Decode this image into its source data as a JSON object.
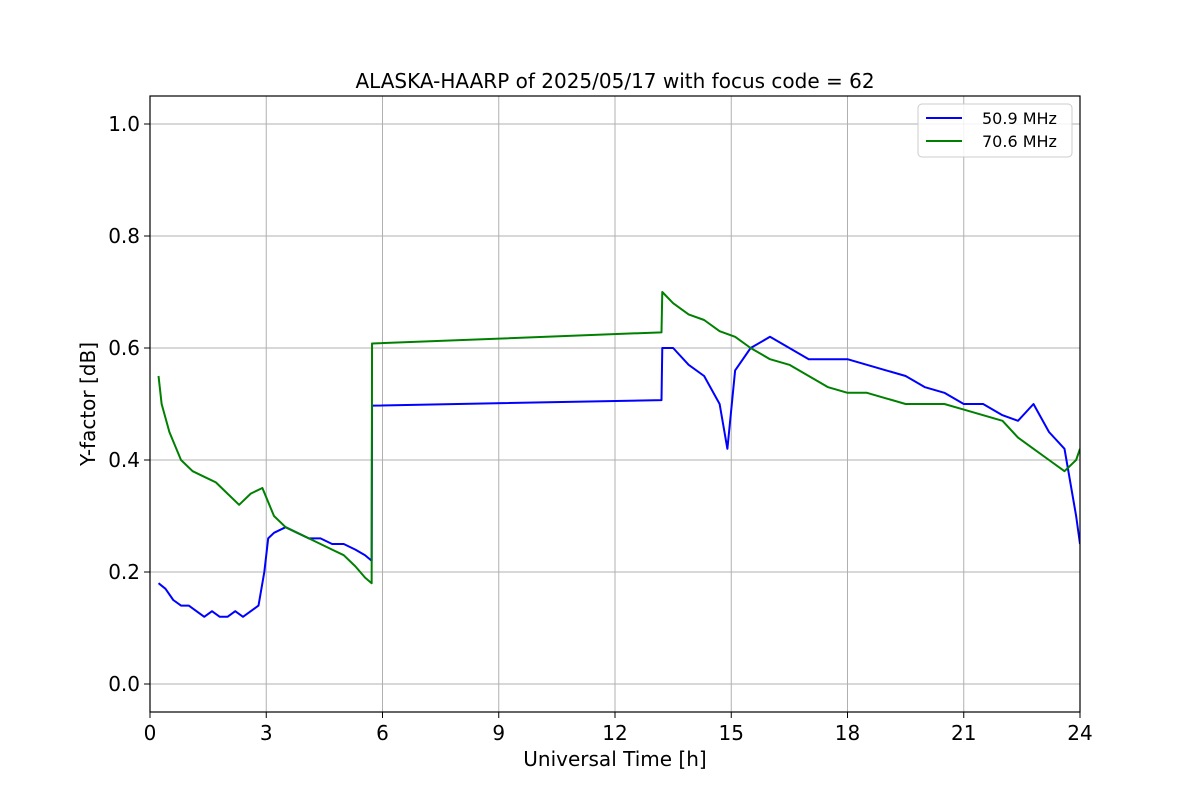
{
  "chart_data": {
    "type": "line",
    "title": "ALASKA-HAARP of 2025/05/17 with focus code = 62",
    "xlabel": "Universal Time [h]",
    "ylabel": "Y-factor [dB]",
    "xlim": [
      0,
      24
    ],
    "ylim": [
      -0.05,
      1.05
    ],
    "xticks": [
      0,
      3,
      6,
      9,
      12,
      15,
      18,
      21,
      24
    ],
    "xtick_labels": [
      "0",
      "3",
      "6",
      "9",
      "12",
      "15",
      "18",
      "21",
      "24"
    ],
    "yticks": [
      0.0,
      0.2,
      0.4,
      0.6,
      0.8,
      1.0
    ],
    "ytick_labels": [
      "0.0",
      "0.2",
      "0.4",
      "0.6",
      "0.8",
      "1.0"
    ],
    "grid": true,
    "legend_position": "top-right",
    "series": [
      {
        "name": "50.9 MHz",
        "color": "#0000ff",
        "x": [
          0.22,
          0.4,
          0.6,
          0.8,
          1.0,
          1.2,
          1.4,
          1.6,
          1.8,
          2.0,
          2.2,
          2.4,
          2.6,
          2.8,
          2.95,
          3.05,
          3.2,
          3.5,
          3.8,
          4.1,
          4.4,
          4.7,
          5.0,
          5.3,
          5.55,
          5.72,
          5.73,
          13.2,
          13.22,
          13.5,
          13.9,
          14.3,
          14.7,
          14.9,
          15.1,
          15.5,
          16.0,
          16.5,
          17.0,
          17.5,
          18.0,
          18.5,
          19.0,
          19.5,
          20.0,
          20.5,
          21.0,
          21.5,
          22.0,
          22.4,
          22.8,
          23.2,
          23.6,
          23.9,
          24.0
        ],
        "y": [
          0.18,
          0.17,
          0.15,
          0.14,
          0.14,
          0.13,
          0.12,
          0.13,
          0.12,
          0.12,
          0.13,
          0.12,
          0.13,
          0.14,
          0.2,
          0.26,
          0.27,
          0.28,
          0.27,
          0.26,
          0.26,
          0.25,
          0.25,
          0.24,
          0.23,
          0.22,
          0.497,
          0.507,
          0.6,
          0.6,
          0.57,
          0.55,
          0.5,
          0.42,
          0.56,
          0.6,
          0.62,
          0.6,
          0.58,
          0.58,
          0.58,
          0.57,
          0.56,
          0.55,
          0.53,
          0.52,
          0.5,
          0.5,
          0.48,
          0.47,
          0.5,
          0.45,
          0.42,
          0.3,
          0.25
        ]
      },
      {
        "name": "70.6 MHz",
        "color": "#008000",
        "x": [
          0.22,
          0.3,
          0.5,
          0.8,
          1.1,
          1.4,
          1.7,
          2.0,
          2.3,
          2.6,
          2.9,
          3.2,
          3.5,
          3.8,
          4.1,
          4.4,
          4.7,
          5.0,
          5.3,
          5.55,
          5.72,
          5.73,
          13.2,
          13.22,
          13.5,
          13.9,
          14.3,
          14.7,
          15.1,
          15.5,
          16.0,
          16.5,
          17.0,
          17.5,
          18.0,
          18.5,
          19.0,
          19.5,
          20.0,
          20.5,
          21.0,
          21.5,
          22.0,
          22.4,
          22.8,
          23.2,
          23.6,
          23.9,
          24.0
        ],
        "y": [
          0.55,
          0.5,
          0.45,
          0.4,
          0.38,
          0.37,
          0.36,
          0.34,
          0.32,
          0.34,
          0.35,
          0.3,
          0.28,
          0.27,
          0.26,
          0.25,
          0.24,
          0.23,
          0.21,
          0.19,
          0.18,
          0.608,
          0.628,
          0.7,
          0.68,
          0.66,
          0.65,
          0.63,
          0.62,
          0.6,
          0.58,
          0.57,
          0.55,
          0.53,
          0.52,
          0.52,
          0.51,
          0.5,
          0.5,
          0.5,
          0.49,
          0.48,
          0.47,
          0.44,
          0.42,
          0.4,
          0.38,
          0.4,
          0.42
        ]
      }
    ]
  }
}
